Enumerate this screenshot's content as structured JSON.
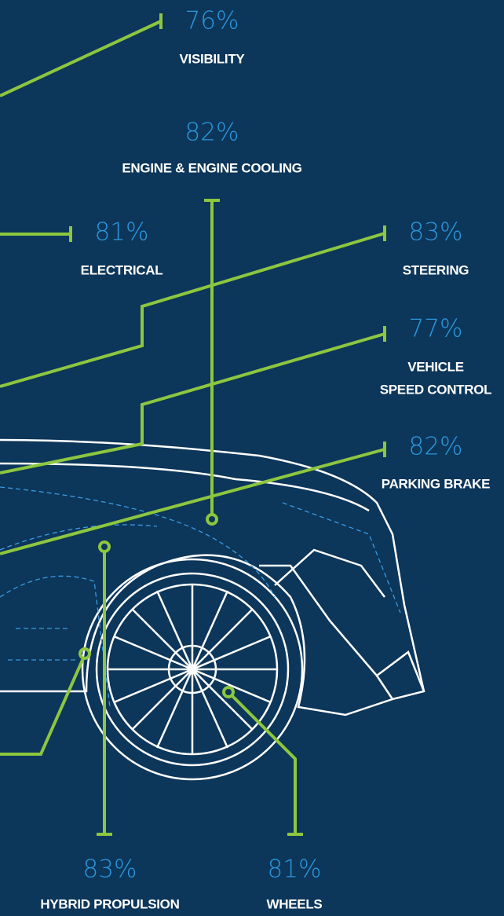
{
  "callouts": [
    {
      "value": "76%",
      "lines": [
        "VISIBILITY"
      ]
    },
    {
      "value": "82%",
      "lines": [
        "ENGINE & ENGINE COOLING"
      ]
    },
    {
      "value": "81%",
      "lines": [
        "ELECTRICAL"
      ]
    },
    {
      "value": "83%",
      "lines": [
        "STEERING"
      ]
    },
    {
      "value": "77%",
      "lines": [
        "VEHICLE",
        "SPEED CONTROL"
      ]
    },
    {
      "value": "82%",
      "lines": [
        "PARKING BRAKE"
      ]
    },
    {
      "value": "83%",
      "lines": [
        "HYBRID PROPULSION"
      ]
    },
    {
      "value": "81%",
      "lines": [
        "WHEELS"
      ]
    }
  ]
}
